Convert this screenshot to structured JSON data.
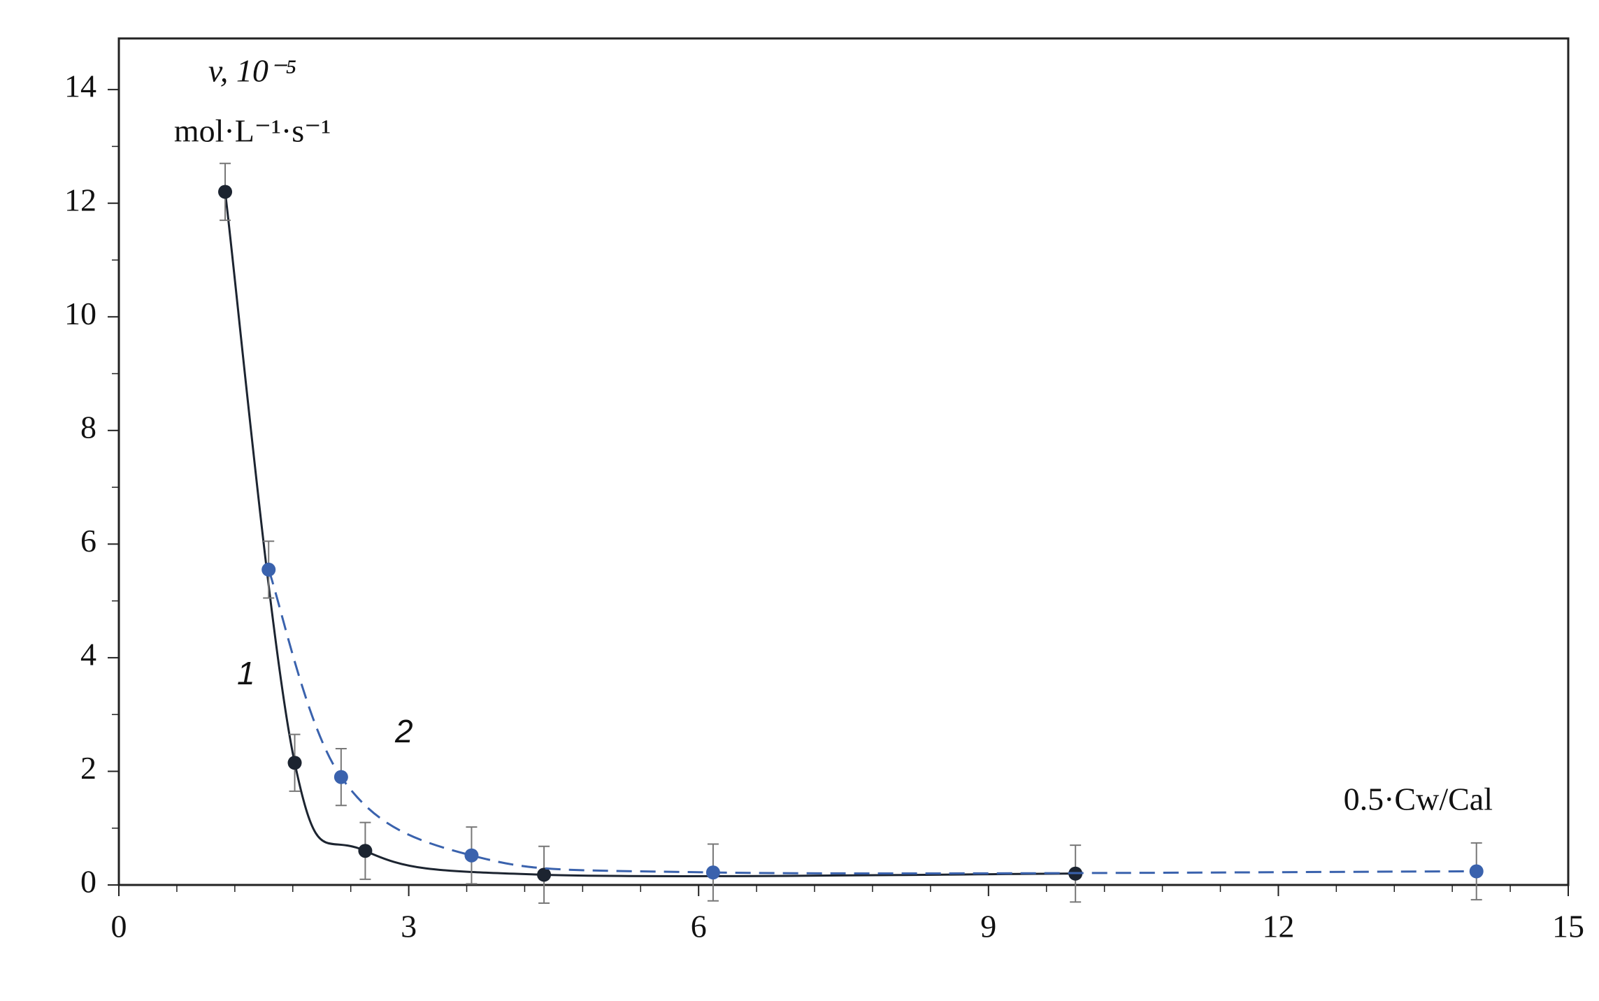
{
  "chart_data": {
    "type": "scatter",
    "ylabel": [
      "v, 10⁻⁵",
      "mol·L⁻¹·s⁻¹"
    ],
    "xlabel": "0.5·Cw/Cal",
    "xlim": [
      0,
      15
    ],
    "xticks": [
      0,
      3,
      6,
      9,
      12,
      15
    ],
    "ylim": [
      0,
      14.9
    ],
    "yticks": [
      0,
      2,
      4,
      6,
      8,
      10,
      12,
      14
    ],
    "series": [
      {
        "name": "1",
        "color": "#1c2430",
        "dash": false,
        "x": [
          1.1,
          1.82,
          2.55,
          4.4,
          9.9
        ],
        "values": [
          12.2,
          2.15,
          0.6,
          0.18,
          0.2
        ],
        "errors": [
          0.5,
          0.5,
          0.5,
          0.5,
          0.5
        ]
      },
      {
        "name": "2",
        "color": "#3a62ad",
        "dash": true,
        "x": [
          1.55,
          2.3,
          3.65,
          6.15,
          14.05
        ],
        "values": [
          5.55,
          1.9,
          0.52,
          0.22,
          0.24
        ],
        "errors": [
          0.5,
          0.5,
          0.5,
          0.5,
          0.5
        ]
      }
    ]
  }
}
